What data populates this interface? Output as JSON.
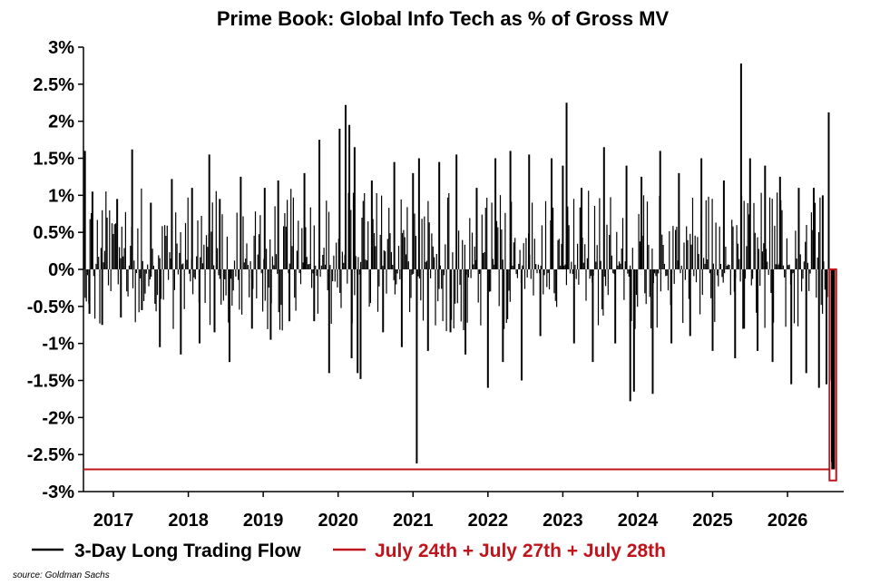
{
  "chart_data": {
    "type": "bar",
    "title": "Prime Book: Global Info Tech as % of Gross MV",
    "xlabel": "",
    "ylabel": "",
    "ylim": [
      -3,
      3
    ],
    "xlim": [
      2016.6,
      2026.75
    ],
    "grid": false,
    "legend_position": "bottom",
    "y_ticks": [
      3,
      2.5,
      2,
      1.5,
      1,
      0.5,
      0,
      -0.5,
      -1,
      -1.5,
      -2,
      -2.5,
      -3
    ],
    "y_tick_labels": [
      "3%",
      "2.5%",
      "2%",
      "1.5%",
      "1%",
      "0.5%",
      "0%",
      "-0.5%",
      "-1%",
      "-1.5%",
      "-2%",
      "-2.5%",
      "-3%"
    ],
    "x_ticks": [
      2017,
      2018,
      2019,
      2020,
      2021,
      2022,
      2023,
      2024,
      2025,
      2026
    ],
    "x_tick_labels": [
      "2017",
      "2018",
      "2019",
      "2020",
      "2021",
      "2022",
      "2023",
      "2024",
      "2025",
      "2026"
    ],
    "series": [
      {
        "name": "3-Day Long Trading Flow",
        "color": "#000000",
        "x": [
          2016.62,
          2016.68,
          2016.72,
          2016.85,
          2017.05,
          2017.1,
          2017.25,
          2017.38,
          2017.5,
          2017.62,
          2017.78,
          2017.9,
          2018.05,
          2018.15,
          2018.28,
          2018.35,
          2018.42,
          2018.55,
          2018.7,
          2018.85,
          2019.02,
          2019.1,
          2019.2,
          2019.35,
          2019.55,
          2019.68,
          2019.75,
          2019.88,
          2020.02,
          2020.1,
          2020.15,
          2020.18,
          2020.22,
          2020.26,
          2020.3,
          2020.45,
          2020.6,
          2020.75,
          2020.85,
          2021.0,
          2021.05,
          2021.08,
          2021.2,
          2021.35,
          2021.5,
          2021.58,
          2021.7,
          2021.85,
          2022.0,
          2022.1,
          2022.2,
          2022.3,
          2022.45,
          2022.55,
          2022.7,
          2022.85,
          2023.0,
          2023.05,
          2023.15,
          2023.25,
          2023.4,
          2023.55,
          2023.7,
          2023.85,
          2023.9,
          2023.95,
          2024.05,
          2024.2,
          2024.3,
          2024.45,
          2024.55,
          2024.7,
          2024.85,
          2025.0,
          2025.15,
          2025.3,
          2025.38,
          2025.42,
          2025.5,
          2025.6,
          2025.7,
          2025.8,
          2025.9,
          2026.05,
          2026.15,
          2026.25,
          2026.35,
          2026.42,
          2026.47,
          2026.52,
          2026.55
        ],
        "values": [
          1.6,
          -0.6,
          1.05,
          -0.75,
          0.95,
          -0.65,
          1.62,
          -0.55,
          0.9,
          -1.05,
          1.22,
          -1.15,
          1.1,
          -1.0,
          1.55,
          -0.85,
          0.95,
          -1.25,
          1.25,
          -0.8,
          1.1,
          -0.95,
          1.2,
          -0.7,
          1.3,
          -0.7,
          1.75,
          -1.4,
          1.9,
          2.22,
          1.95,
          -1.2,
          1.65,
          -1.4,
          -1.48,
          1.2,
          -0.85,
          1.45,
          -1.05,
          1.3,
          -2.62,
          1.5,
          -1.1,
          1.45,
          -0.85,
          1.55,
          -1.15,
          1.1,
          -1.6,
          1.5,
          -1.25,
          1.6,
          -1.5,
          1.55,
          -0.9,
          1.5,
          1.4,
          2.25,
          -1.0,
          1.1,
          -1.25,
          1.65,
          -1.0,
          1.4,
          -1.78,
          -1.65,
          1.25,
          -1.68,
          1.6,
          -1.0,
          1.3,
          -0.9,
          1.5,
          -1.1,
          1.2,
          -1.2,
          2.78,
          -0.8,
          1.5,
          -1.1,
          1.4,
          -1.25,
          1.25,
          -1.55,
          1.1,
          -1.4,
          1.1,
          -1.6,
          1.0,
          -1.55,
          2.12
        ]
      },
      {
        "name": "July 24th + July 27th + July 28th",
        "color": "#c0141c",
        "reference_level": -2.7,
        "highlight": {
          "x_range": [
            2026.56,
            2026.65
          ],
          "values": [
            -2.7,
            -2.6,
            -1.5
          ]
        }
      }
    ],
    "source": "source: Goldman Sachs"
  }
}
